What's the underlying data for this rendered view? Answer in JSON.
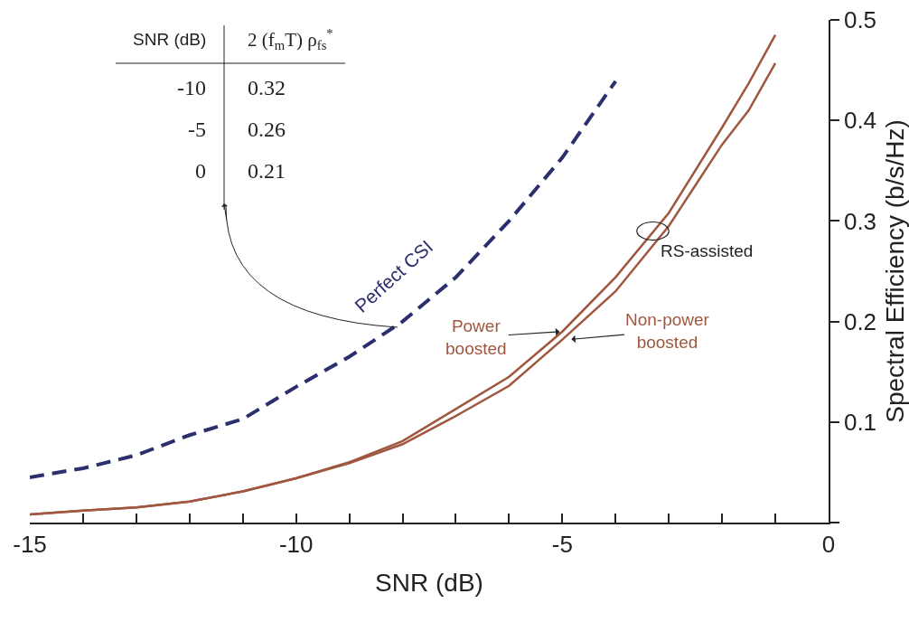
{
  "chart_data": {
    "type": "line",
    "xlabel": "SNR (dB)",
    "ylabel": "Spectral Efficiency (b/s/Hz)",
    "xlim": [
      -15,
      0
    ],
    "xticks": [
      -15,
      {
        "value": -14,
        "label": null
      },
      {
        "value": -13,
        "label": null
      },
      {
        "value": -12,
        "label": null
      },
      {
        "value": -11,
        "label": null
      },
      -10,
      {
        "value": -9,
        "label": null
      },
      {
        "value": -8,
        "label": null
      },
      {
        "value": -7,
        "label": null
      },
      {
        "value": -6,
        "label": null
      },
      -5,
      {
        "value": -4,
        "label": null
      },
      {
        "value": -3,
        "label": null
      },
      {
        "value": -2,
        "label": null
      },
      {
        "value": -1,
        "label": null
      },
      0
    ],
    "ylim": [
      0,
      0.5
    ],
    "yticks": [
      {
        "value": 0,
        "label": null
      },
      0.1,
      0.2,
      0.3,
      0.4,
      0.5
    ],
    "grid": false,
    "legend": false,
    "marker": "none",
    "series": [
      {
        "name": "Perfect CSI",
        "color": "#2b2f6e",
        "line_style": "dashed",
        "x": [
          -15,
          -14,
          -13,
          -12,
          -11,
          -10,
          -9,
          -8,
          -7,
          -6,
          -5,
          -4
        ],
        "values": [
          0.045,
          0.054,
          0.067,
          0.087,
          0.103,
          0.135,
          0.165,
          0.2,
          0.244,
          0.3,
          0.363,
          0.439
        ]
      },
      {
        "name": "Power\nboosted",
        "color": "#a0573f",
        "line_style": "solid",
        "x": [
          -15,
          -14,
          -13,
          -12,
          -11,
          -10,
          -9,
          -8,
          -7,
          -6,
          -5,
          -4,
          -3,
          -2,
          -1.5,
          -1
        ],
        "values": [
          0.008,
          0.012,
          0.015,
          0.021,
          0.031,
          0.044,
          0.06,
          0.081,
          0.113,
          0.145,
          0.19,
          0.244,
          0.308,
          0.393,
          0.437,
          0.485
        ]
      },
      {
        "name": "Non-power\nboosted",
        "color": "#a0573f",
        "line_style": "solid",
        "x": [
          -15,
          -14,
          -13,
          -12,
          -11,
          -10,
          -9,
          -8,
          -7,
          -6,
          -5,
          -4,
          -3,
          -2,
          -1.5,
          -1
        ],
        "values": [
          0.008,
          0.012,
          0.015,
          0.021,
          0.031,
          0.044,
          0.059,
          0.078,
          0.106,
          0.136,
          0.182,
          0.23,
          0.295,
          0.376,
          0.41,
          0.457
        ]
      }
    ],
    "annotations": [
      "SNR (dB)",
      "2 (f$_{m}$T) ρ$_{fs}$$^{*}$",
      "-10",
      "0.32",
      "-5",
      "0.26",
      "0",
      "0.21",
      {
        "text": "RS-assisted",
        "x": -3.3,
        "y": 0.29
      }
    ]
  }
}
